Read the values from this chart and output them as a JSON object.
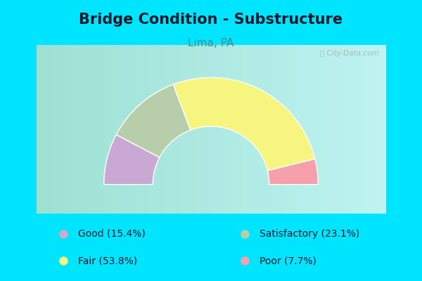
{
  "title": "Bridge Condition - Substructure",
  "subtitle": "Lima, PA",
  "background_color": "#00e5ff",
  "chart_bg_gradient_left": "#c8e6c9",
  "chart_bg_gradient_right": "#e8f5e9",
  "segments": [
    {
      "label": "Good",
      "pct": 15.4,
      "color": "#c9a8d4"
    },
    {
      "label": "Satisfactory",
      "pct": 23.1,
      "color": "#b8ceaa"
    },
    {
      "label": "Fair",
      "pct": 53.8,
      "color": "#f5f580"
    },
    {
      "label": "Poor",
      "pct": 7.7,
      "color": "#f5a0aa"
    }
  ],
  "legend": [
    {
      "label": "Good (15.4%)",
      "color": "#d4a8c8"
    },
    {
      "label": "Satisfactory (23.1%)",
      "color": "#b8ceaa"
    },
    {
      "label": "Fair (53.8%)",
      "color": "#f5f580"
    },
    {
      "label": "Poor (7.7%)",
      "color": "#f5a0aa"
    }
  ],
  "watermark": "City-Data.com",
  "title_color": "#1a1a2e",
  "subtitle_color": "#4a8a8a",
  "title_fontsize": 15,
  "subtitle_fontsize": 11
}
